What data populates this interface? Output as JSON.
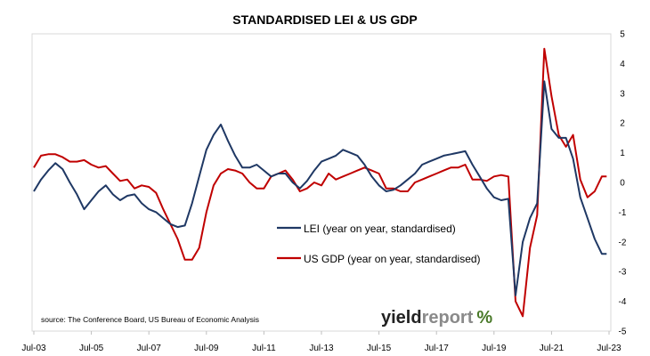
{
  "chart_data": {
    "type": "line",
    "title": "STANDARDISED LEI & US GDP",
    "xlabel": "",
    "ylabel": "",
    "x_ticks": [
      "Jul-03",
      "Jul-05",
      "Jul-07",
      "Jul-09",
      "Jul-11",
      "Jul-13",
      "Jul-15",
      "Jul-17",
      "Jul-19",
      "Jul-21",
      "Jul-23"
    ],
    "y_ticks": [
      "5",
      "4",
      "3",
      "2",
      "1",
      "0",
      "-1",
      "-2",
      "-3",
      "-4",
      "-5"
    ],
    "ylim": [
      -5,
      5
    ],
    "xlim": [
      "2003-07",
      "2023-07"
    ],
    "y_axis_position": "right",
    "grid": false,
    "legend_position": "center",
    "source_note": "source: The Conference Board, US Bureau of Economic Analysis",
    "brand": {
      "text_dark": "yield",
      "text_light": "report",
      "symbol": "%"
    },
    "series": [
      {
        "name": "LEI (year on year, standardised)",
        "color": "#1f3864",
        "points": [
          [
            "2003-07",
            -0.3
          ],
          [
            "2003-10",
            0.1
          ],
          [
            "2004-01",
            0.4
          ],
          [
            "2004-04",
            0.65
          ],
          [
            "2004-07",
            0.45
          ],
          [
            "2004-10",
            0.0
          ],
          [
            "2005-01",
            -0.4
          ],
          [
            "2005-04",
            -0.9
          ],
          [
            "2005-07",
            -0.6
          ],
          [
            "2005-10",
            -0.3
          ],
          [
            "2006-01",
            -0.1
          ],
          [
            "2006-04",
            -0.4
          ],
          [
            "2006-07",
            -0.6
          ],
          [
            "2006-10",
            -0.45
          ],
          [
            "2007-01",
            -0.4
          ],
          [
            "2007-04",
            -0.7
          ],
          [
            "2007-07",
            -0.9
          ],
          [
            "2007-10",
            -1.0
          ],
          [
            "2008-01",
            -1.2
          ],
          [
            "2008-04",
            -1.4
          ],
          [
            "2008-07",
            -1.5
          ],
          [
            "2008-10",
            -1.45
          ],
          [
            "2009-01",
            -0.7
          ],
          [
            "2009-04",
            0.2
          ],
          [
            "2009-07",
            1.1
          ],
          [
            "2009-10",
            1.6
          ],
          [
            "2010-01",
            1.95
          ],
          [
            "2010-04",
            1.4
          ],
          [
            "2010-07",
            0.9
          ],
          [
            "2010-10",
            0.5
          ],
          [
            "2011-01",
            0.5
          ],
          [
            "2011-04",
            0.6
          ],
          [
            "2011-07",
            0.4
          ],
          [
            "2011-10",
            0.2
          ],
          [
            "2012-01",
            0.3
          ],
          [
            "2012-04",
            0.3
          ],
          [
            "2012-07",
            0.0
          ],
          [
            "2012-10",
            -0.2
          ],
          [
            "2013-01",
            0.05
          ],
          [
            "2013-04",
            0.4
          ],
          [
            "2013-07",
            0.7
          ],
          [
            "2013-10",
            0.8
          ],
          [
            "2014-01",
            0.9
          ],
          [
            "2014-04",
            1.1
          ],
          [
            "2014-07",
            1.0
          ],
          [
            "2014-10",
            0.9
          ],
          [
            "2015-01",
            0.6
          ],
          [
            "2015-04",
            0.2
          ],
          [
            "2015-07",
            -0.1
          ],
          [
            "2015-10",
            -0.3
          ],
          [
            "2016-01",
            -0.25
          ],
          [
            "2016-04",
            -0.1
          ],
          [
            "2016-07",
            0.1
          ],
          [
            "2016-10",
            0.3
          ],
          [
            "2017-01",
            0.6
          ],
          [
            "2017-04",
            0.7
          ],
          [
            "2017-07",
            0.8
          ],
          [
            "2017-10",
            0.9
          ],
          [
            "2018-01",
            0.95
          ],
          [
            "2018-04",
            1.0
          ],
          [
            "2018-07",
            1.05
          ],
          [
            "2018-10",
            0.6
          ],
          [
            "2019-01",
            0.2
          ],
          [
            "2019-04",
            -0.2
          ],
          [
            "2019-07",
            -0.5
          ],
          [
            "2019-10",
            -0.6
          ],
          [
            "2020-01",
            -0.55
          ],
          [
            "2020-04",
            -3.8
          ],
          [
            "2020-07",
            -2.0
          ],
          [
            "2020-10",
            -1.2
          ],
          [
            "2021-01",
            -0.7
          ],
          [
            "2021-04",
            3.4
          ],
          [
            "2021-07",
            1.8
          ],
          [
            "2021-10",
            1.5
          ],
          [
            "2022-01",
            1.5
          ],
          [
            "2022-04",
            0.8
          ],
          [
            "2022-07",
            -0.5
          ],
          [
            "2022-10",
            -1.2
          ],
          [
            "2023-01",
            -1.9
          ],
          [
            "2023-04",
            -2.4
          ],
          [
            "2023-06",
            -2.4
          ]
        ]
      },
      {
        "name": "US GDP (year on year, standardised)",
        "color": "#c00000",
        "points": [
          [
            "2003-07",
            0.5
          ],
          [
            "2003-10",
            0.9
          ],
          [
            "2004-01",
            0.95
          ],
          [
            "2004-04",
            0.95
          ],
          [
            "2004-07",
            0.85
          ],
          [
            "2004-10",
            0.7
          ],
          [
            "2005-01",
            0.7
          ],
          [
            "2005-04",
            0.75
          ],
          [
            "2005-07",
            0.6
          ],
          [
            "2005-10",
            0.5
          ],
          [
            "2006-01",
            0.55
          ],
          [
            "2006-04",
            0.3
          ],
          [
            "2006-07",
            0.05
          ],
          [
            "2006-10",
            0.1
          ],
          [
            "2007-01",
            -0.2
          ],
          [
            "2007-04",
            -0.1
          ],
          [
            "2007-07",
            -0.15
          ],
          [
            "2007-10",
            -0.35
          ],
          [
            "2008-01",
            -0.9
          ],
          [
            "2008-04",
            -1.4
          ],
          [
            "2008-07",
            -1.9
          ],
          [
            "2008-10",
            -2.6
          ],
          [
            "2009-01",
            -2.6
          ],
          [
            "2009-04",
            -2.2
          ],
          [
            "2009-07",
            -1.0
          ],
          [
            "2009-10",
            -0.1
          ],
          [
            "2010-01",
            0.3
          ],
          [
            "2010-04",
            0.45
          ],
          [
            "2010-07",
            0.4
          ],
          [
            "2010-10",
            0.3
          ],
          [
            "2011-01",
            0.0
          ],
          [
            "2011-04",
            -0.2
          ],
          [
            "2011-07",
            -0.2
          ],
          [
            "2011-10",
            0.2
          ],
          [
            "2012-01",
            0.3
          ],
          [
            "2012-04",
            0.4
          ],
          [
            "2012-07",
            0.1
          ],
          [
            "2012-10",
            -0.3
          ],
          [
            "2013-01",
            -0.2
          ],
          [
            "2013-04",
            0.0
          ],
          [
            "2013-07",
            -0.1
          ],
          [
            "2013-10",
            0.3
          ],
          [
            "2014-01",
            0.1
          ],
          [
            "2014-04",
            0.2
          ],
          [
            "2014-07",
            0.3
          ],
          [
            "2014-10",
            0.4
          ],
          [
            "2015-01",
            0.5
          ],
          [
            "2015-04",
            0.4
          ],
          [
            "2015-07",
            0.3
          ],
          [
            "2015-10",
            -0.2
          ],
          [
            "2016-01",
            -0.2
          ],
          [
            "2016-04",
            -0.3
          ],
          [
            "2016-07",
            -0.3
          ],
          [
            "2016-10",
            0.0
          ],
          [
            "2017-01",
            0.1
          ],
          [
            "2017-04",
            0.2
          ],
          [
            "2017-07",
            0.3
          ],
          [
            "2017-10",
            0.4
          ],
          [
            "2018-01",
            0.5
          ],
          [
            "2018-04",
            0.5
          ],
          [
            "2018-07",
            0.6
          ],
          [
            "2018-10",
            0.1
          ],
          [
            "2019-01",
            0.1
          ],
          [
            "2019-04",
            0.05
          ],
          [
            "2019-07",
            0.2
          ],
          [
            "2019-10",
            0.25
          ],
          [
            "2020-01",
            0.2
          ],
          [
            "2020-04",
            -4.0
          ],
          [
            "2020-07",
            -4.5
          ],
          [
            "2020-10",
            -2.2
          ],
          [
            "2021-01",
            -1.1
          ],
          [
            "2021-04",
            4.5
          ],
          [
            "2021-07",
            2.9
          ],
          [
            "2021-10",
            1.6
          ],
          [
            "2022-01",
            1.2
          ],
          [
            "2022-04",
            1.6
          ],
          [
            "2022-07",
            0.1
          ],
          [
            "2022-10",
            -0.5
          ],
          [
            "2023-01",
            -0.3
          ],
          [
            "2023-04",
            0.2
          ],
          [
            "2023-06",
            0.2
          ]
        ]
      }
    ]
  }
}
